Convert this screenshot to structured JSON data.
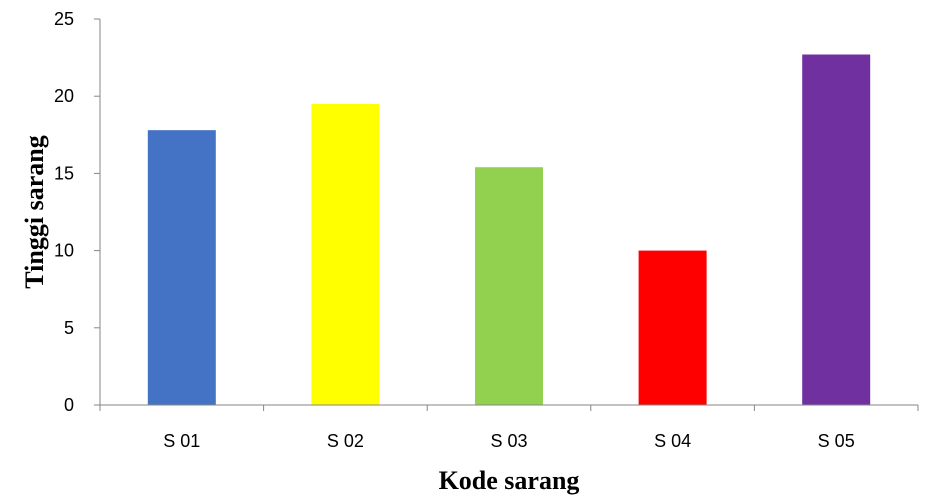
{
  "chart_data": {
    "type": "bar",
    "title": "",
    "xlabel": "Kode sarang",
    "ylabel": "Tinggi sarang",
    "categories": [
      "S 01",
      "S 02",
      "S 03",
      "S 04",
      "S 05"
    ],
    "values": [
      17.8,
      19.5,
      15.4,
      10.0,
      22.7
    ],
    "colors": [
      "#4472C4",
      "#FFFF00",
      "#92D050",
      "#FF0000",
      "#7030A0"
    ],
    "ylim": [
      0,
      25
    ],
    "yticks": [
      0,
      5,
      10,
      15,
      20,
      25
    ],
    "grid": false,
    "legend": "none"
  }
}
